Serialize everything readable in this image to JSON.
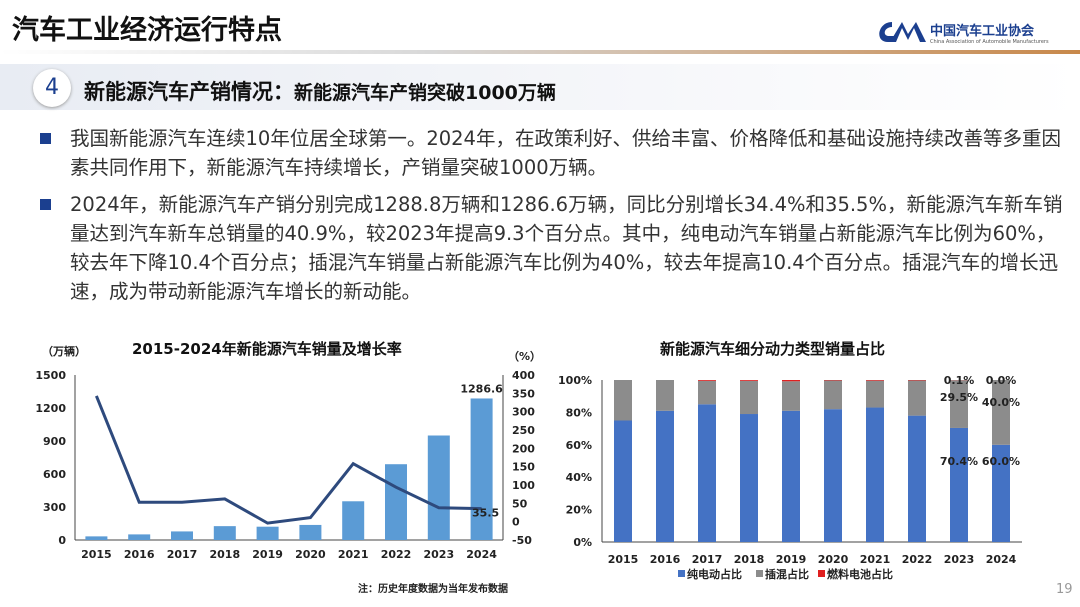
{
  "header": {
    "title": "汽车工业经济运行特点",
    "logo_cn": "中国汽车工业协会",
    "logo_en": "China Association of Automobile Manufacturers"
  },
  "section": {
    "number": "4",
    "heading": "新能源汽车产销情况：",
    "subheading": "新能源汽车产销突破1000万辆"
  },
  "bullets": [
    "我国新能源汽车连续10年位居全球第一。2024年，在政策利好、供给丰富、价格降低和基础设施持续改善等多重因素共同作用下，新能源汽车持续增长，产销量突破1000万辆。",
    "2024年，新能源汽车产销分别完成1288.8万辆和1286.6万辆，同比分别增长34.4%和35.5%，新能源汽车新车销量达到汽车新车总销量的40.9%，较2023年提高9.3个百分点。其中，纯电动汽车销量占新能源汽车比例为60%，较去年下降10.4个百分点；插混汽车销量占新能源汽车比例为40%，较去年提高10.4个百分点。插混汽车的增长迅速，成为带动新能源汽车增长的新动能。"
  ],
  "footer": {
    "note": "注：历史年度数据为当年发布数据",
    "page": "19"
  },
  "colors": {
    "brand": "#1b3f8f",
    "bar": "#5b9bd5",
    "line": "#2e4a7d",
    "bev": "#4472c4",
    "phev": "#8c8c8c",
    "fcv": "#e02020"
  },
  "chart_data": [
    {
      "type": "bar+line",
      "title": "2015-2024年新能源汽车销量及增长率",
      "ylabel": "（万辆）",
      "y2label": "（%）",
      "categories": [
        "2015",
        "2016",
        "2017",
        "2018",
        "2019",
        "2020",
        "2021",
        "2022",
        "2023",
        "2024"
      ],
      "ylim": [
        0,
        1500
      ],
      "yticks": [
        "0",
        "300",
        "600",
        "900",
        "1200",
        "1500"
      ],
      "y2lim": [
        -50,
        400
      ],
      "y2ticks": [
        "-50",
        "0",
        "50",
        "100",
        "150",
        "200",
        "250",
        "300",
        "350",
        "400"
      ],
      "series": [
        {
          "type": "bar",
          "values": [
            33,
            51,
            78,
            126,
            121,
            137,
            352,
            689,
            950,
            1286.6
          ]
        },
        {
          "type": "line",
          "values": [
            343,
            53,
            53,
            62,
            -4,
            11,
            158,
            94,
            38,
            35.5
          ]
        }
      ],
      "data_labels": {
        "bar_2024": "1286.6",
        "line_2024": "35.5"
      },
      "grid": false
    },
    {
      "type": "stacked-bar",
      "title": "新能源汽车细分动力类型销量占比",
      "categories": [
        "2015",
        "2016",
        "2017",
        "2018",
        "2019",
        "2020",
        "2021",
        "2022",
        "2023",
        "2024"
      ],
      "ylim": [
        0,
        100
      ],
      "yticks": [
        "0%",
        "20%",
        "40%",
        "60%",
        "80%",
        "100%"
      ],
      "series": [
        {
          "name": "纯电动占比",
          "values": [
            75,
            81,
            85,
            79,
            81,
            82,
            83,
            78,
            70.4,
            60.0
          ]
        },
        {
          "name": "插混占比",
          "values": [
            25,
            19,
            14.5,
            20.5,
            18.2,
            17.7,
            16.6,
            21.7,
            29.5,
            40.0
          ]
        },
        {
          "name": "燃料电池占比",
          "values": [
            0,
            0,
            0.5,
            0.5,
            0.8,
            0.3,
            0.4,
            0.3,
            0.1,
            0.0
          ]
        }
      ],
      "data_labels": {
        "2023": [
          "70.4%",
          "29.5%",
          "0.1%"
        ],
        "2024": [
          "60.0%",
          "40.0%",
          "0.0%"
        ]
      },
      "legend": "bottom",
      "grid": false
    }
  ]
}
